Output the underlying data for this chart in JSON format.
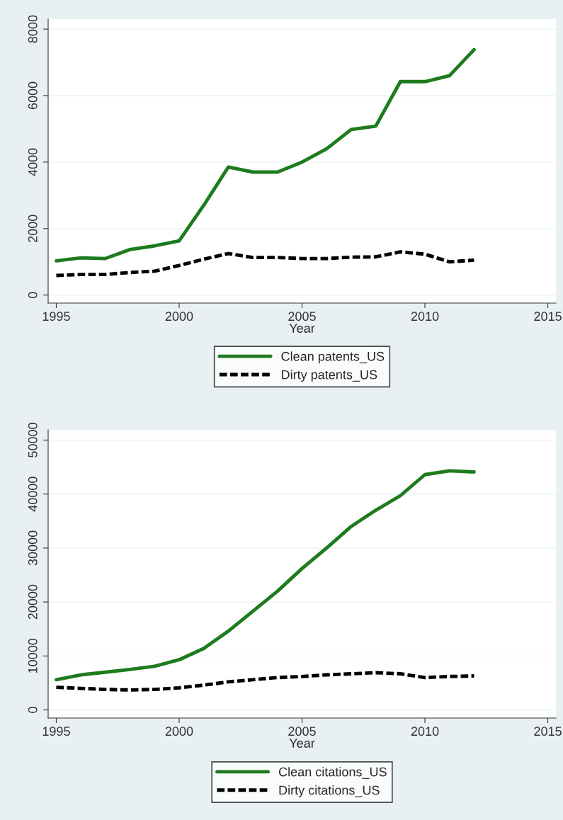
{
  "chart_data": [
    {
      "type": "line",
      "xlabel": "Year",
      "x": [
        1995,
        1996,
        1997,
        1998,
        1999,
        2000,
        2001,
        2002,
        2003,
        2004,
        2005,
        2006,
        2007,
        2008,
        2009,
        2010,
        2011,
        2012
      ],
      "series": [
        {
          "name": "Clean patents_US",
          "color": "#1e7b1e",
          "line_style": "solid",
          "values": [
            1030,
            1120,
            1100,
            1370,
            1480,
            1630,
            2700,
            3850,
            3700,
            3700,
            4000,
            4400,
            4980,
            5080,
            6420,
            6420,
            6600,
            7380
          ]
        },
        {
          "name": "Dirty patents_US",
          "color": "#000000",
          "line_style": "dashed",
          "values": [
            590,
            620,
            620,
            680,
            720,
            890,
            1080,
            1250,
            1130,
            1130,
            1100,
            1100,
            1140,
            1150,
            1300,
            1230,
            1000,
            1050
          ]
        }
      ],
      "xlim": [
        1994.67,
        2015.33
      ],
      "xticks": [
        1995,
        2000,
        2005,
        2010,
        2015
      ],
      "ylim": [
        -240,
        8300
      ],
      "yticks": [
        0,
        2000,
        4000,
        6000,
        8000
      ],
      "grid": "y",
      "legend": "bottom"
    },
    {
      "type": "line",
      "xlabel": "Year",
      "x": [
        1995,
        1996,
        1997,
        1998,
        1999,
        2000,
        2001,
        2002,
        2003,
        2004,
        2005,
        2006,
        2007,
        2008,
        2009,
        2010,
        2011,
        2012
      ],
      "series": [
        {
          "name": "Clean citations_US",
          "color": "#1e7b1e",
          "line_style": "solid",
          "values": [
            5600,
            6500,
            7000,
            7500,
            8100,
            9300,
            11400,
            14600,
            18300,
            22000,
            26200,
            30000,
            34000,
            37000,
            39700,
            43600,
            44300,
            44100
          ]
        },
        {
          "name": "Dirty citations_US",
          "color": "#000000",
          "line_style": "dashed",
          "values": [
            4200,
            4000,
            3800,
            3700,
            3800,
            4100,
            4600,
            5200,
            5600,
            6000,
            6200,
            6500,
            6700,
            6900,
            6700,
            6000,
            6200,
            6300
          ]
        }
      ],
      "xlim": [
        1994.67,
        2015.33
      ],
      "xticks": [
        1995,
        2000,
        2005,
        2010,
        2015
      ],
      "ylim": [
        -1500,
        51900
      ],
      "yticks": [
        0,
        10000,
        20000,
        30000,
        40000,
        50000
      ],
      "grid": "y",
      "legend": "bottom"
    }
  ]
}
